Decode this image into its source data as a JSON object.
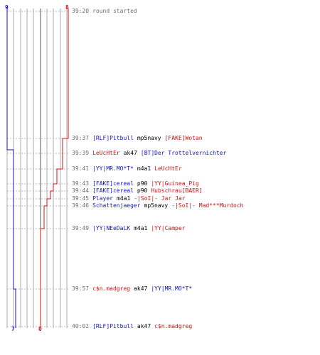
{
  "colors": {
    "team_blue": "#1010c0",
    "team_red": "#d01010",
    "grid": "#aaaaaa",
    "text_gray": "#6e6e6e"
  },
  "counts": {
    "blue_start": "9",
    "red_start": "8",
    "blue_end": "7",
    "red_end": "0"
  },
  "events": [
    {
      "time": "39:20",
      "message": "round started"
    },
    {
      "time": "39:37",
      "killer": "[RLF]Pitbull",
      "killer_team": "blue",
      "weapon": "mp5navy",
      "victim": "[FAKE]Wotan",
      "victim_team": "red"
    },
    {
      "time": "39:39",
      "killer": "LeUcHtEr",
      "killer_team": "red",
      "weapon": "ak47",
      "victim": "[BT]Der Trottelvernichter",
      "victim_team": "blue"
    },
    {
      "time": "39:41",
      "killer": "|YY|MR.MO*T*",
      "killer_team": "blue",
      "weapon": "m4a1",
      "victim": "LeUcHtEr",
      "victim_team": "red"
    },
    {
      "time": "39:43",
      "killer": "[FAKE]cereal",
      "killer_team": "blue",
      "weapon": "p90",
      "victim": "|YY|Guinea_Pig",
      "victim_team": "red"
    },
    {
      "time": "39:44",
      "killer": "[FAKE]cereal",
      "killer_team": "blue",
      "weapon": "p90",
      "victim": "Hubschrau[BAER]",
      "victim_team": "red"
    },
    {
      "time": "39:45",
      "killer": "Player",
      "killer_team": "blue",
      "weapon": "m4a1",
      "victim": "-|SoI|- Jar Jar",
      "victim_team": "red"
    },
    {
      "time": "39:46",
      "killer": "Schattenjaeger",
      "killer_team": "blue",
      "weapon": "mp5navy",
      "victim": "-|SoI|- Mad***Murdoch",
      "victim_team": "red"
    },
    {
      "time": "39:49",
      "killer": "|YY|NEeDaLK",
      "killer_team": "blue",
      "weapon": "m4a1",
      "victim": "|YY|Camper",
      "victim_team": "red"
    },
    {
      "time": "39:57",
      "killer": "c$n.madgreg",
      "killer_team": "red",
      "weapon": "ak47",
      "victim": "|YY|MR.MO*T*",
      "victim_team": "blue"
    },
    {
      "time": "40:02",
      "killer": "[RLF]Pitbull",
      "killer_team": "blue",
      "weapon": "ak47",
      "victim": "c$n.madgreg",
      "victim_team": "red"
    }
  ]
}
